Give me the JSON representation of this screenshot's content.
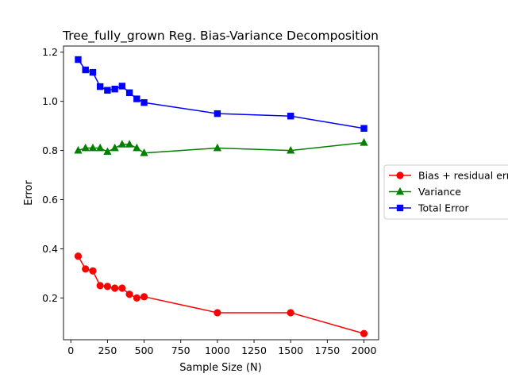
{
  "chart_data": {
    "type": "line",
    "title": "Tree_fully_grown Reg. Bias-Variance Decomposition",
    "xlabel": "Sample Size (N)",
    "ylabel": "Error",
    "xlim": [
      -50,
      2100
    ],
    "ylim": [
      0.03,
      1.225
    ],
    "x_ticks": [
      0,
      250,
      500,
      750,
      1000,
      1250,
      1500,
      1750,
      2000
    ],
    "y_ticks": [
      0.2,
      0.4,
      0.6,
      0.8,
      1.0,
      1.2
    ],
    "x_tick_labels": [
      "0",
      "250",
      "500",
      "750",
      "1000",
      "1250",
      "1500",
      "1750",
      "2000"
    ],
    "y_tick_labels": [
      "0.2",
      "0.4",
      "0.6",
      "0.8",
      "1.0",
      "1.2"
    ],
    "grid": false,
    "legend_position": "right-outside",
    "x": [
      50,
      100,
      150,
      200,
      250,
      300,
      350,
      400,
      450,
      500,
      1000,
      1500,
      2000
    ],
    "series": [
      {
        "name": "Bias + residual error",
        "color": "#ff0000",
        "marker": "circle",
        "values": [
          0.37,
          0.318,
          0.31,
          0.25,
          0.247,
          0.24,
          0.24,
          0.215,
          0.2,
          0.205,
          0.14,
          0.14,
          0.055
        ]
      },
      {
        "name": "Variance",
        "color": "#008000",
        "marker": "triangle",
        "values": [
          0.8,
          0.81,
          0.81,
          0.81,
          0.795,
          0.81,
          0.825,
          0.825,
          0.81,
          0.79,
          0.81,
          0.8,
          0.832
        ]
      },
      {
        "name": "Total Error",
        "color": "#0000ff",
        "marker": "square",
        "values": [
          1.17,
          1.128,
          1.118,
          1.06,
          1.045,
          1.05,
          1.062,
          1.035,
          1.01,
          0.995,
          0.95,
          0.94,
          0.89
        ]
      }
    ]
  }
}
